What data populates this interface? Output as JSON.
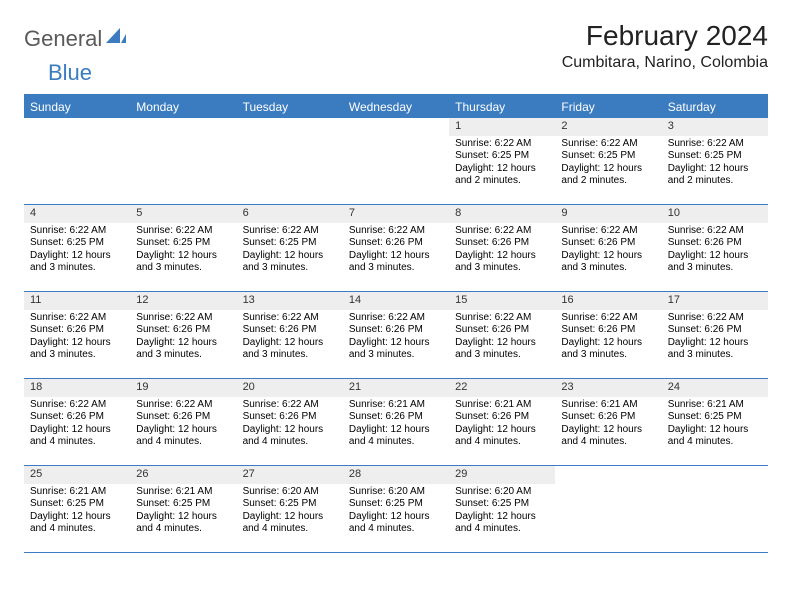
{
  "logo": {
    "part1": "General",
    "part2": "Blue"
  },
  "title": "February 2024",
  "location": "Cumbitara, Narino, Colombia",
  "colors": {
    "brand_blue": "#3b7bbf",
    "header_text": "#ffffff",
    "daynum_bg": "#eeeeee",
    "body_text": "#000000",
    "logo_gray": "#5a5a5a"
  },
  "daysOfWeek": [
    "Sunday",
    "Monday",
    "Tuesday",
    "Wednesday",
    "Thursday",
    "Friday",
    "Saturday"
  ],
  "weeks": [
    [
      {
        "n": "",
        "sr": "",
        "ss": "",
        "dl": ""
      },
      {
        "n": "",
        "sr": "",
        "ss": "",
        "dl": ""
      },
      {
        "n": "",
        "sr": "",
        "ss": "",
        "dl": ""
      },
      {
        "n": "",
        "sr": "",
        "ss": "",
        "dl": ""
      },
      {
        "n": "1",
        "sr": "Sunrise: 6:22 AM",
        "ss": "Sunset: 6:25 PM",
        "dl": "Daylight: 12 hours and 2 minutes."
      },
      {
        "n": "2",
        "sr": "Sunrise: 6:22 AM",
        "ss": "Sunset: 6:25 PM",
        "dl": "Daylight: 12 hours and 2 minutes."
      },
      {
        "n": "3",
        "sr": "Sunrise: 6:22 AM",
        "ss": "Sunset: 6:25 PM",
        "dl": "Daylight: 12 hours and 2 minutes."
      }
    ],
    [
      {
        "n": "4",
        "sr": "Sunrise: 6:22 AM",
        "ss": "Sunset: 6:25 PM",
        "dl": "Daylight: 12 hours and 3 minutes."
      },
      {
        "n": "5",
        "sr": "Sunrise: 6:22 AM",
        "ss": "Sunset: 6:25 PM",
        "dl": "Daylight: 12 hours and 3 minutes."
      },
      {
        "n": "6",
        "sr": "Sunrise: 6:22 AM",
        "ss": "Sunset: 6:25 PM",
        "dl": "Daylight: 12 hours and 3 minutes."
      },
      {
        "n": "7",
        "sr": "Sunrise: 6:22 AM",
        "ss": "Sunset: 6:26 PM",
        "dl": "Daylight: 12 hours and 3 minutes."
      },
      {
        "n": "8",
        "sr": "Sunrise: 6:22 AM",
        "ss": "Sunset: 6:26 PM",
        "dl": "Daylight: 12 hours and 3 minutes."
      },
      {
        "n": "9",
        "sr": "Sunrise: 6:22 AM",
        "ss": "Sunset: 6:26 PM",
        "dl": "Daylight: 12 hours and 3 minutes."
      },
      {
        "n": "10",
        "sr": "Sunrise: 6:22 AM",
        "ss": "Sunset: 6:26 PM",
        "dl": "Daylight: 12 hours and 3 minutes."
      }
    ],
    [
      {
        "n": "11",
        "sr": "Sunrise: 6:22 AM",
        "ss": "Sunset: 6:26 PM",
        "dl": "Daylight: 12 hours and 3 minutes."
      },
      {
        "n": "12",
        "sr": "Sunrise: 6:22 AM",
        "ss": "Sunset: 6:26 PM",
        "dl": "Daylight: 12 hours and 3 minutes."
      },
      {
        "n": "13",
        "sr": "Sunrise: 6:22 AM",
        "ss": "Sunset: 6:26 PM",
        "dl": "Daylight: 12 hours and 3 minutes."
      },
      {
        "n": "14",
        "sr": "Sunrise: 6:22 AM",
        "ss": "Sunset: 6:26 PM",
        "dl": "Daylight: 12 hours and 3 minutes."
      },
      {
        "n": "15",
        "sr": "Sunrise: 6:22 AM",
        "ss": "Sunset: 6:26 PM",
        "dl": "Daylight: 12 hours and 3 minutes."
      },
      {
        "n": "16",
        "sr": "Sunrise: 6:22 AM",
        "ss": "Sunset: 6:26 PM",
        "dl": "Daylight: 12 hours and 3 minutes."
      },
      {
        "n": "17",
        "sr": "Sunrise: 6:22 AM",
        "ss": "Sunset: 6:26 PM",
        "dl": "Daylight: 12 hours and 3 minutes."
      }
    ],
    [
      {
        "n": "18",
        "sr": "Sunrise: 6:22 AM",
        "ss": "Sunset: 6:26 PM",
        "dl": "Daylight: 12 hours and 4 minutes."
      },
      {
        "n": "19",
        "sr": "Sunrise: 6:22 AM",
        "ss": "Sunset: 6:26 PM",
        "dl": "Daylight: 12 hours and 4 minutes."
      },
      {
        "n": "20",
        "sr": "Sunrise: 6:22 AM",
        "ss": "Sunset: 6:26 PM",
        "dl": "Daylight: 12 hours and 4 minutes."
      },
      {
        "n": "21",
        "sr": "Sunrise: 6:21 AM",
        "ss": "Sunset: 6:26 PM",
        "dl": "Daylight: 12 hours and 4 minutes."
      },
      {
        "n": "22",
        "sr": "Sunrise: 6:21 AM",
        "ss": "Sunset: 6:26 PM",
        "dl": "Daylight: 12 hours and 4 minutes."
      },
      {
        "n": "23",
        "sr": "Sunrise: 6:21 AM",
        "ss": "Sunset: 6:26 PM",
        "dl": "Daylight: 12 hours and 4 minutes."
      },
      {
        "n": "24",
        "sr": "Sunrise: 6:21 AM",
        "ss": "Sunset: 6:25 PM",
        "dl": "Daylight: 12 hours and 4 minutes."
      }
    ],
    [
      {
        "n": "25",
        "sr": "Sunrise: 6:21 AM",
        "ss": "Sunset: 6:25 PM",
        "dl": "Daylight: 12 hours and 4 minutes."
      },
      {
        "n": "26",
        "sr": "Sunrise: 6:21 AM",
        "ss": "Sunset: 6:25 PM",
        "dl": "Daylight: 12 hours and 4 minutes."
      },
      {
        "n": "27",
        "sr": "Sunrise: 6:20 AM",
        "ss": "Sunset: 6:25 PM",
        "dl": "Daylight: 12 hours and 4 minutes."
      },
      {
        "n": "28",
        "sr": "Sunrise: 6:20 AM",
        "ss": "Sunset: 6:25 PM",
        "dl": "Daylight: 12 hours and 4 minutes."
      },
      {
        "n": "29",
        "sr": "Sunrise: 6:20 AM",
        "ss": "Sunset: 6:25 PM",
        "dl": "Daylight: 12 hours and 4 minutes."
      },
      {
        "n": "",
        "sr": "",
        "ss": "",
        "dl": ""
      },
      {
        "n": "",
        "sr": "",
        "ss": "",
        "dl": ""
      }
    ]
  ]
}
